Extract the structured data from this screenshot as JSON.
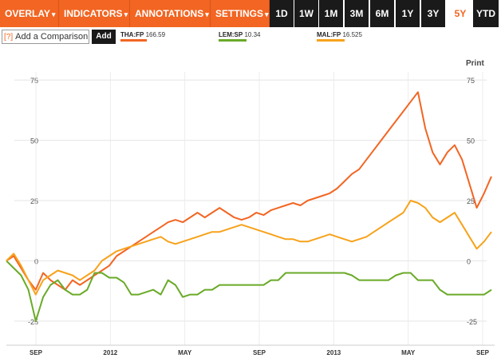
{
  "toolbar": {
    "menus": [
      {
        "label": "OVERLAY",
        "caret": "▾"
      },
      {
        "label": "INDICATORS",
        "caret": "▾"
      },
      {
        "label": "ANNOTATIONS",
        "caret": "▾"
      },
      {
        "label": "SETTINGS",
        "caret": "▾"
      }
    ],
    "ranges": [
      "1D",
      "1W",
      "1M",
      "3M",
      "6M",
      "1Y",
      "3Y",
      "5Y",
      "YTD"
    ],
    "active_range": "5Y"
  },
  "compare": {
    "help_icon": "[?]",
    "placeholder": "Add a Comparison",
    "add_label": "Add"
  },
  "legend": [
    {
      "ticker": "THA:FP",
      "value": "166.59",
      "color": "#f26522"
    },
    {
      "ticker": "LEM:SP",
      "value": "10.34",
      "color": "#6aaa28"
    },
    {
      "ticker": "MAL:FP",
      "value": "16.525",
      "color": "#f7a21b"
    }
  ],
  "print_label": "Print",
  "colors": {
    "accent": "#f26522",
    "dark": "#1a1a1a"
  },
  "chart_data": {
    "type": "line",
    "ylim": [
      -35,
      85
    ],
    "y_ticks": [
      75,
      50,
      25,
      0,
      -25
    ],
    "x_ticks": [
      "SEP",
      "2012",
      "MAY",
      "SEP",
      "2013",
      "MAY",
      "SEP"
    ],
    "grid": true,
    "series": [
      {
        "name": "THA:FP",
        "color": "#f26522",
        "values": [
          0,
          2,
          -3,
          -8,
          -12,
          -5,
          -8,
          -10,
          -12,
          -8,
          -10,
          -8,
          -6,
          -4,
          -2,
          2,
          4,
          6,
          8,
          10,
          12,
          14,
          16,
          17,
          16,
          18,
          20,
          18,
          20,
          22,
          20,
          18,
          17,
          18,
          20,
          19,
          21,
          22,
          23,
          24,
          23,
          25,
          26,
          27,
          28,
          30,
          33,
          36,
          38,
          42,
          46,
          50,
          54,
          58,
          62,
          66,
          70,
          55,
          45,
          40,
          45,
          48,
          42,
          32,
          22,
          28,
          35
        ]
      },
      {
        "name": "LEM:SP",
        "color": "#6aaa28",
        "values": [
          0,
          -3,
          -6,
          -12,
          -25,
          -15,
          -10,
          -8,
          -12,
          -14,
          -14,
          -12,
          -5,
          -5,
          -7,
          -7,
          -9,
          -14,
          -14,
          -13,
          -12,
          -14,
          -8,
          -10,
          -15,
          -14,
          -14,
          -12,
          -12,
          -10,
          -10,
          -10,
          -10,
          -10,
          -10,
          -10,
          -8,
          -8,
          -5,
          -5,
          -5,
          -5,
          -5,
          -5,
          -5,
          -5,
          -5,
          -6,
          -8,
          -8,
          -8,
          -8,
          -8,
          -6,
          -5,
          -5,
          -8,
          -8,
          -8,
          -12,
          -14,
          -14,
          -14,
          -14,
          -14,
          -14,
          -12
        ]
      },
      {
        "name": "MAL:FP",
        "color": "#f7a21b",
        "values": [
          0,
          3,
          -2,
          -8,
          -14,
          -8,
          -6,
          -4,
          -5,
          -6,
          -8,
          -6,
          -4,
          0,
          2,
          4,
          5,
          6,
          7,
          8,
          9,
          10,
          8,
          7,
          8,
          9,
          10,
          11,
          12,
          12,
          13,
          14,
          15,
          14,
          13,
          12,
          11,
          10,
          9,
          9,
          8,
          8,
          9,
          10,
          11,
          10,
          9,
          8,
          9,
          10,
          12,
          14,
          16,
          18,
          20,
          25,
          24,
          22,
          18,
          16,
          18,
          20,
          15,
          10,
          5,
          8,
          12
        ]
      }
    ]
  }
}
